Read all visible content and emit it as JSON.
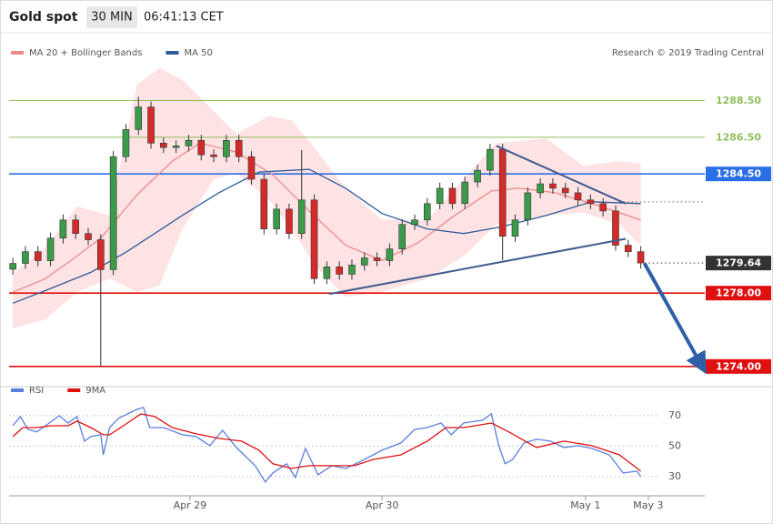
{
  "header": {
    "title": "Gold spot",
    "interval": "30 MIN",
    "time": "06:41:13 CET"
  },
  "chart_data": [
    {
      "type": "candlestick",
      "source": "Research © 2019 Trading Central",
      "xlim": [
        -0.3,
        55.1
      ],
      "ylim": [
        1272.9,
        1292.0
      ],
      "up_color": "#3c9b4a",
      "down_color": "#d42a2a",
      "x": [
        0,
        1,
        2,
        3,
        4,
        5,
        6,
        7,
        8,
        9,
        10,
        11,
        12,
        13,
        14,
        15,
        16,
        17,
        18,
        19,
        20,
        21,
        22,
        23,
        24,
        25,
        26,
        27,
        28,
        29,
        30,
        31,
        32,
        33,
        34,
        35,
        36,
        37,
        38,
        39,
        40,
        41,
        42,
        43,
        44,
        45,
        46,
        47,
        48,
        49,
        50
      ],
      "open": [
        1279.3,
        1279.62,
        1280.26,
        1279.77,
        1281.0,
        1281.99,
        1281.25,
        1280.91,
        1279.28,
        1285.44,
        1286.92,
        1288.15,
        1286.18,
        1285.94,
        1286.03,
        1286.33,
        1285.54,
        1285.44,
        1286.33,
        1285.44,
        1284.21,
        1281.5,
        1282.58,
        1281.25,
        1283.08,
        1278.79,
        1279.43,
        1279.03,
        1279.53,
        1279.92,
        1279.77,
        1280.41,
        1281.74,
        1281.99,
        1282.88,
        1283.72,
        1282.88,
        1284.06,
        1284.7,
        1285.84,
        1281.1,
        1281.99,
        1283.47,
        1283.96,
        1283.72,
        1283.47,
        1283.08,
        1282.88,
        1282.48,
        1280.61,
        1280.26
      ],
      "high": [
        1279.92,
        1280.56,
        1280.56,
        1281.3,
        1282.29,
        1282.29,
        1281.55,
        1281.21,
        1285.74,
        1287.22,
        1288.7,
        1288.45,
        1286.48,
        1286.33,
        1286.63,
        1286.63,
        1285.84,
        1286.63,
        1286.63,
        1285.74,
        1284.51,
        1282.88,
        1282.88,
        1285.8,
        1283.38,
        1279.73,
        1279.73,
        1279.83,
        1280.22,
        1280.22,
        1280.71,
        1282.04,
        1282.29,
        1283.18,
        1284.02,
        1284.02,
        1284.36,
        1285.0,
        1286.14,
        1286.14,
        1282.29,
        1283.77,
        1284.26,
        1284.26,
        1284.02,
        1283.77,
        1283.38,
        1283.18,
        1282.78,
        1280.91,
        1280.56
      ],
      "low": [
        1279.0,
        1279.32,
        1279.47,
        1279.47,
        1280.7,
        1280.95,
        1280.61,
        1274.0,
        1278.98,
        1285.14,
        1286.62,
        1285.88,
        1285.64,
        1285.64,
        1285.73,
        1285.24,
        1285.14,
        1285.14,
        1285.14,
        1283.91,
        1281.2,
        1281.2,
        1280.95,
        1280.95,
        1278.49,
        1278.49,
        1278.73,
        1278.73,
        1279.23,
        1279.47,
        1279.47,
        1280.11,
        1281.44,
        1281.69,
        1282.58,
        1282.58,
        1282.58,
        1283.76,
        1284.4,
        1279.8,
        1280.8,
        1281.69,
        1283.17,
        1283.42,
        1283.17,
        1282.78,
        1282.58,
        1282.18,
        1280.31,
        1279.96,
        1279.34
      ],
      "close": [
        1279.62,
        1280.26,
        1279.77,
        1281.0,
        1281.99,
        1281.25,
        1280.91,
        1279.28,
        1285.44,
        1286.92,
        1288.15,
        1286.18,
        1285.94,
        1286.03,
        1286.33,
        1285.54,
        1285.44,
        1286.33,
        1285.44,
        1284.21,
        1281.5,
        1282.58,
        1281.25,
        1283.08,
        1278.79,
        1279.43,
        1279.03,
        1279.53,
        1279.92,
        1279.77,
        1280.41,
        1281.74,
        1281.99,
        1282.88,
        1283.72,
        1282.88,
        1284.06,
        1284.7,
        1285.84,
        1281.1,
        1281.99,
        1283.47,
        1283.96,
        1283.72,
        1283.47,
        1283.08,
        1282.88,
        1282.48,
        1280.61,
        1280.26,
        1279.64
      ],
      "bollinger": {
        "color": "#fde3e3",
        "x": [
          0,
          2.6,
          5.1,
          7.7,
          9.9,
          11.7,
          13.5,
          16.0,
          17.8,
          20.4,
          22.2,
          24.0,
          26.5,
          29.4,
          33.0,
          35.9,
          38.5,
          42.5,
          45.4,
          48.3,
          50.0
        ],
        "upper": [
          1279.03,
          1280.51,
          1282.73,
          1282.24,
          1289.39,
          1290.28,
          1289.63,
          1287.91,
          1286.68,
          1287.66,
          1287.42,
          1285.94,
          1283.72,
          1281.99,
          1281.99,
          1284.21,
          1286.18,
          1286.43,
          1284.95,
          1285.2,
          1285.05
        ],
        "lower": [
          1276.07,
          1276.57,
          1278.05,
          1278.79,
          1278.05,
          1278.44,
          1281.5,
          1284.21,
          1284.55,
          1283.08,
          1281.5,
          1279.53,
          1277.8,
          1278.05,
          1278.79,
          1280.02,
          1281.74,
          1282.24,
          1282.39,
          1281.74,
          1280.61
        ]
      },
      "series": [
        {
          "name": "MA 20 + Bollinger Bands",
          "color": "#ee8a8a",
          "x": [
            0,
            2.6,
            5.1,
            7.0,
            9.9,
            12.7,
            14.9,
            17.8,
            20.7,
            23.6,
            26.5,
            29.4,
            32.3,
            35.2,
            38.1,
            40.3,
            43.2,
            46.8,
            50.0
          ],
          "values": [
            1278.05,
            1278.79,
            1280.02,
            1281.0,
            1283.37,
            1285.2,
            1286.18,
            1285.69,
            1284.46,
            1282.48,
            1280.61,
            1279.77,
            1280.76,
            1282.24,
            1283.57,
            1283.72,
            1283.47,
            1282.73,
            1281.99
          ]
        },
        {
          "name": "MA 50",
          "color": "#2f5b9a",
          "x": [
            0,
            2.6,
            6.2,
            9.1,
            13.5,
            16.4,
            19.6,
            23.6,
            26.5,
            29.4,
            33.0,
            35.9,
            38.8,
            42.5,
            46.1,
            50.0
          ],
          "values": [
            1277.45,
            1278.14,
            1279.13,
            1280.27,
            1282.24,
            1283.47,
            1284.6,
            1284.75,
            1283.72,
            1282.34,
            1281.5,
            1281.25,
            1281.6,
            1282.24,
            1282.98,
            1282.88
          ]
        }
      ],
      "levels": [
        {
          "value": 1288.5,
          "label": "1288.50",
          "color": "#8fbf5a",
          "style": "solid",
          "boxed": false
        },
        {
          "value": 1286.5,
          "label": "1286.50",
          "color": "#8fbf5a",
          "style": "solid",
          "boxed": false
        },
        {
          "value": 1284.5,
          "label": "1284.50",
          "color": "#2b6fe8",
          "style": "solid",
          "boxed": true
        },
        {
          "value": 1282.98,
          "color": "#666666",
          "style": "dotted",
          "x_from": 48.3
        },
        {
          "value": 1279.64,
          "label": "1279.64",
          "color": "#333333",
          "style": "dotted",
          "boxed": true,
          "x_from": 50.3
        },
        {
          "value": 1278.0,
          "label": "1278.00",
          "color": "#e01010",
          "style": "solid",
          "boxed": true
        },
        {
          "value": 1274.0,
          "label": "1274.00",
          "color": "#e01010",
          "style": "solid",
          "boxed": true
        }
      ],
      "trendlines": [
        {
          "color": "#3f5b8f",
          "x": [
            38.5,
            48.8
          ],
          "y": [
            1286.03,
            1282.88
          ]
        },
        {
          "color": "#3f5b8f",
          "x": [
            25.2,
            48.8
          ],
          "y": [
            1277.95,
            1280.96
          ]
        }
      ],
      "arrow": {
        "color": "#2e5fa8",
        "x": [
          50.3,
          54.8
        ],
        "y": [
          1279.62,
          1274.1
        ]
      }
    },
    {
      "type": "line",
      "xlim": [
        -0.3,
        55.1
      ],
      "ylim": [
        20.4,
        80.1
      ],
      "yticks": [
        30,
        50,
        70
      ],
      "grid": true,
      "xticks": [
        {
          "value": 14.1,
          "label": "Apr 29"
        },
        {
          "value": 29.4,
          "label": "Apr 30"
        },
        {
          "value": 45.6,
          "label": "May 1"
        },
        {
          "value": 50.6,
          "label": "May 3"
        }
      ],
      "series": [
        {
          "name": "RSI",
          "color": "#5b7fde",
          "x": [
            0,
            0.6,
            1.2,
            1.9,
            2.6,
            3.2,
            3.7,
            4.4,
            5.1,
            5.7,
            6.2,
            7.0,
            7.2,
            7.7,
            8.4,
            9.9,
            10.4,
            10.9,
            12.0,
            13.5,
            14.6,
            15.7,
            16.7,
            17.8,
            19.3,
            20.1,
            20.7,
            21.8,
            22.5,
            23.3,
            24.3,
            25.4,
            26.5,
            27.6,
            28.7,
            29.4,
            30.9,
            32.0,
            33.0,
            34.1,
            34.9,
            35.9,
            37.4,
            38.1,
            38.7,
            39.2,
            39.8,
            40.7,
            41.7,
            42.8,
            43.9,
            45.0,
            46.1,
            47.5,
            48.6,
            49.7,
            50.0
          ],
          "values": [
            63.4,
            69.4,
            61.0,
            59.3,
            63.4,
            67.0,
            70.0,
            65.2,
            69.4,
            53.3,
            56.3,
            57.5,
            44.3,
            62.2,
            68.2,
            74.2,
            75.4,
            62.2,
            62.2,
            57.5,
            56.3,
            50.3,
            60.4,
            49.1,
            37.2,
            26.4,
            32.4,
            38.4,
            29.4,
            48.5,
            31.2,
            37.2,
            35.4,
            39.6,
            44.3,
            47.3,
            52.1,
            61.0,
            62.2,
            65.2,
            57.5,
            65.2,
            67.0,
            71.2,
            50.3,
            38.4,
            41.3,
            52.1,
            54.5,
            53.3,
            49.1,
            50.3,
            48.5,
            44.3,
            32.4,
            33.6,
            30.0
          ]
        },
        {
          "name": "9MA",
          "color": "#e01010",
          "x": [
            0,
            0.8,
            1.9,
            3.0,
            4.4,
            5.1,
            6.2,
            7.2,
            7.7,
            8.8,
            10.2,
            11.3,
            12.7,
            14.6,
            16.4,
            18.2,
            19.6,
            20.7,
            22.2,
            23.6,
            25.4,
            27.2,
            28.7,
            30.9,
            33.0,
            34.5,
            35.9,
            38.1,
            39.5,
            41.7,
            43.9,
            46.1,
            48.3,
            50.0
          ],
          "values": [
            56.3,
            62.2,
            62.2,
            63.4,
            63.4,
            66.4,
            62.2,
            57.5,
            57.5,
            63.4,
            71.2,
            69.4,
            62.2,
            58.1,
            55.1,
            53.3,
            47.3,
            38.4,
            35.4,
            37.2,
            37.2,
            37.2,
            41.3,
            44.3,
            53.3,
            62.2,
            62.2,
            65.2,
            59.3,
            49.1,
            53.3,
            50.3,
            44.3,
            33.6
          ]
        }
      ]
    }
  ]
}
